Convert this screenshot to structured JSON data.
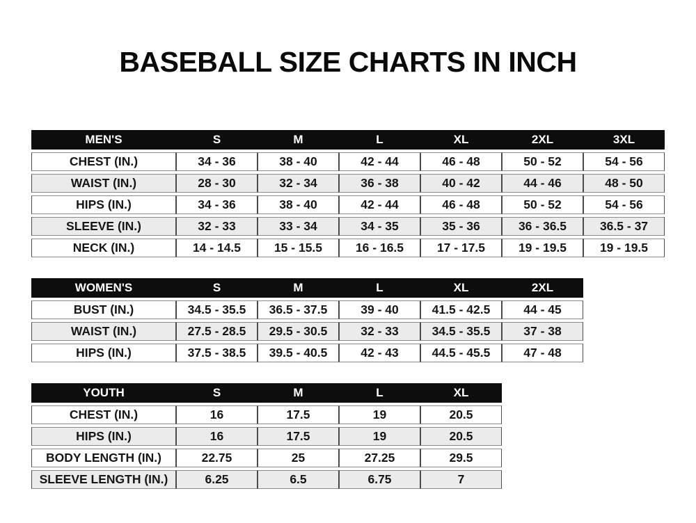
{
  "title": "BASEBALL SIZE CHARTS IN INCH",
  "colors": {
    "header_bg": "#0d0d0d",
    "header_text": "#ffffff",
    "row_bg": "#ffffff",
    "row_alt_bg": "#ebebeb",
    "border_dark": "#4a4a4a",
    "border_light": "#8a8a8a"
  },
  "tables": [
    {
      "id": "mens",
      "header": [
        "MEN'S",
        "S",
        "M",
        "L",
        "XL",
        "2XL",
        "3XL"
      ],
      "rows": [
        {
          "label": "CHEST (IN.)",
          "values": [
            "34 - 36",
            "38 - 40",
            "42 - 44",
            "46 - 48",
            "50 - 52",
            "54 - 56"
          ]
        },
        {
          "label": "WAIST (IN.)",
          "values": [
            "28 - 30",
            "32 - 34",
            "36 - 38",
            "40 - 42",
            "44 - 46",
            "48 - 50"
          ]
        },
        {
          "label": "HIPS (IN.)",
          "values": [
            "34 - 36",
            "38 - 40",
            "42 - 44",
            "46 - 48",
            "50 - 52",
            "54 - 56"
          ]
        },
        {
          "label": "SLEEVE (IN.)",
          "values": [
            "32 - 33",
            "33 - 34",
            "34 - 35",
            "35 - 36",
            "36 - 36.5",
            "36.5 - 37"
          ]
        },
        {
          "label": "NECK (IN.)",
          "values": [
            "14 - 14.5",
            "15 - 15.5",
            "16 - 16.5",
            "17 - 17.5",
            "19 - 19.5",
            "19 - 19.5"
          ]
        }
      ]
    },
    {
      "id": "womens",
      "header": [
        "WOMEN'S",
        "S",
        "M",
        "L",
        "XL",
        "2XL"
      ],
      "rows": [
        {
          "label": "BUST (IN.)",
          "values": [
            "34.5 - 35.5",
            "36.5 - 37.5",
            "39 - 40",
            "41.5 - 42.5",
            "44 - 45"
          ]
        },
        {
          "label": "WAIST (IN.)",
          "values": [
            "27.5 - 28.5",
            "29.5 - 30.5",
            "32 - 33",
            "34.5 - 35.5",
            "37 - 38"
          ]
        },
        {
          "label": "HIPS (IN.)",
          "values": [
            "37.5 - 38.5",
            "39.5 - 40.5",
            "42 - 43",
            "44.5 - 45.5",
            "47 - 48"
          ]
        }
      ]
    },
    {
      "id": "youth",
      "header": [
        "YOUTH",
        "S",
        "M",
        "L",
        "XL"
      ],
      "rows": [
        {
          "label": "CHEST (IN.)",
          "values": [
            "16",
            "17.5",
            "19",
            "20.5"
          ]
        },
        {
          "label": "HIPS (IN.)",
          "values": [
            "16",
            "17.5",
            "19",
            "20.5"
          ]
        },
        {
          "label": "BODY LENGTH (IN.)",
          "values": [
            "22.75",
            "25",
            "27.25",
            "29.5"
          ]
        },
        {
          "label": "SLEEVE LENGTH (IN.)",
          "values": [
            "6.25",
            "6.5",
            "6.75",
            "7"
          ]
        }
      ]
    }
  ]
}
